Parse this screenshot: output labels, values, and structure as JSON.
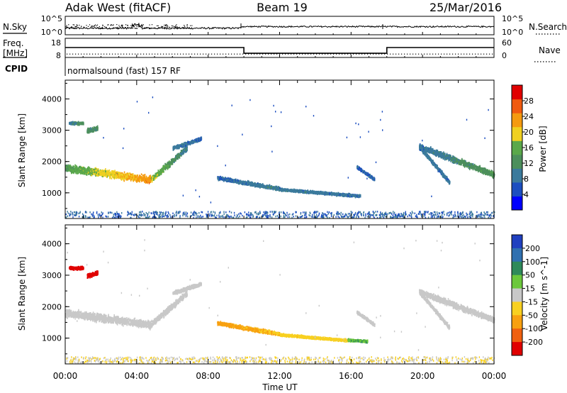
{
  "header": {
    "station": "Adak West (fitACF)",
    "beam": "Beam 19",
    "date": "25/Mar/2016"
  },
  "chart_data": [
    {
      "type": "line",
      "id": "nsky",
      "left_label": "N.Sky",
      "right_label": "N.Search",
      "left_ticks": [
        "10^5",
        "10^0"
      ],
      "right_ticks": [
        "10^5",
        "10^0"
      ]
    },
    {
      "type": "line",
      "id": "freq",
      "left_label_top": "Freq.",
      "left_label_bottom": "[MHz]",
      "right_label": "Nave",
      "left_ticks": [
        18,
        8
      ],
      "right_ticks": [
        60,
        0
      ],
      "ylim_left": [
        8,
        18
      ],
      "ylim_right": [
        0,
        60
      ],
      "segments": [
        {
          "t0": 0.0,
          "t1": 10.0,
          "freq": 13.2
        },
        {
          "t0": 10.0,
          "t1": 18.0,
          "freq": 10.2
        },
        {
          "t0": 18.0,
          "t1": 24.0,
          "freq": 13.2
        }
      ],
      "nave": 12
    },
    {
      "type": "table",
      "id": "cpid",
      "label": "CPID",
      "text": "normalsound (fast) 157 RF"
    },
    {
      "type": "scatter",
      "id": "power",
      "ylabel": "Slant Range [km]",
      "yticks": [
        1000,
        2000,
        3000,
        4000
      ],
      "ylim": [
        180,
        4600
      ],
      "xlim": [
        0,
        24
      ],
      "colorbar": {
        "label": "Power [dB]",
        "ticks": [
          4,
          8,
          12,
          16,
          20,
          24,
          28
        ],
        "range": [
          0,
          32
        ],
        "colors": [
          "#0000ff",
          "#1c4ec0",
          "#3b7a9c",
          "#4c8f5c",
          "#5aa84a",
          "#f0d020",
          "#f59a10",
          "#f05a10",
          "#e00000"
        ]
      },
      "features": [
        {
          "t0": 0.0,
          "t1": 4.8,
          "r0": 1820,
          "r1": 1440,
          "width": 330,
          "v0": 14,
          "v1": 24
        },
        {
          "t0": 4.8,
          "t1": 6.8,
          "r0": 1460,
          "r1": 2450,
          "width": 260,
          "v0": 18,
          "v1": 9
        },
        {
          "t0": 0.2,
          "t1": 1.0,
          "r0": 3250,
          "r1": 3250,
          "width": 120,
          "v0": 9,
          "v1": 13
        },
        {
          "t0": 1.2,
          "t1": 1.8,
          "r0": 3000,
          "r1": 3100,
          "width": 180,
          "v0": 12,
          "v1": 12
        },
        {
          "t0": 6.0,
          "t1": 7.6,
          "r0": 2450,
          "r1": 2750,
          "width": 160,
          "v0": 9,
          "v1": 7
        },
        {
          "t0": 8.5,
          "t1": 12.0,
          "r0": 1500,
          "r1": 1150,
          "width": 160,
          "v0": 7,
          "v1": 10
        },
        {
          "t0": 12.0,
          "t1": 16.5,
          "r0": 1130,
          "r1": 920,
          "width": 110,
          "v0": 9,
          "v1": 8
        },
        {
          "t0": 16.3,
          "t1": 17.3,
          "r0": 1850,
          "r1": 1450,
          "width": 130,
          "v0": 7,
          "v1": 7
        },
        {
          "t0": 19.8,
          "t1": 21.5,
          "r0": 2500,
          "r1": 1350,
          "width": 180,
          "v0": 9,
          "v1": 8
        },
        {
          "t0": 19.8,
          "t1": 24.0,
          "r0": 2500,
          "r1": 1600,
          "width": 260,
          "v0": 8,
          "v1": 14
        }
      ]
    },
    {
      "type": "scatter",
      "id": "velocity",
      "xlabel": "Time UT",
      "ylabel": "Slant Range [km]",
      "yticks": [
        1000,
        2000,
        3000,
        4000
      ],
      "ylim": [
        180,
        4600
      ],
      "xlim": [
        0,
        24
      ],
      "xticks": [
        "00:00",
        "04:00",
        "08:00",
        "12:00",
        "16:00",
        "20:00",
        "00:00"
      ],
      "colorbar": {
        "label": "Velocity [m s^-1]",
        "ticks": [
          200,
          100,
          50,
          15,
          -15,
          -50,
          -100,
          -200
        ],
        "colors": [
          "#2040c0",
          "#3070b0",
          "#2e8a5a",
          "#6cc83c",
          "#c8c8c8",
          "#f8d020",
          "#f8a010",
          "#f06010",
          "#e00000"
        ]
      },
      "features": [
        {
          "t0": 0.0,
          "t1": 4.8,
          "r0": 1820,
          "r1": 1440,
          "width": 330,
          "v0": 0,
          "v1": 0
        },
        {
          "t0": 4.8,
          "t1": 6.8,
          "r0": 1460,
          "r1": 2450,
          "width": 260,
          "v0": 0,
          "v1": 0
        },
        {
          "t0": 0.2,
          "t1": 1.0,
          "r0": 3250,
          "r1": 3250,
          "width": 120,
          "v0": -230,
          "v1": -230
        },
        {
          "t0": 1.2,
          "t1": 1.8,
          "r0": 3000,
          "r1": 3100,
          "width": 180,
          "v0": -230,
          "v1": -230
        },
        {
          "t0": 6.0,
          "t1": 7.6,
          "r0": 2450,
          "r1": 2750,
          "width": 160,
          "v0": 0,
          "v1": 0
        },
        {
          "t0": 8.5,
          "t1": 12.0,
          "r0": 1500,
          "r1": 1150,
          "width": 160,
          "v0": -40,
          "v1": -30
        },
        {
          "t0": 12.0,
          "t1": 15.8,
          "r0": 1130,
          "r1": 950,
          "width": 110,
          "v0": -25,
          "v1": -20
        },
        {
          "t0": 15.8,
          "t1": 16.9,
          "r0": 960,
          "r1": 920,
          "width": 100,
          "v0": 30,
          "v1": 30
        },
        {
          "t0": 16.3,
          "t1": 17.3,
          "r0": 1850,
          "r1": 1450,
          "width": 130,
          "v0": 0,
          "v1": 0
        },
        {
          "t0": 19.8,
          "t1": 21.5,
          "r0": 2500,
          "r1": 1350,
          "width": 180,
          "v0": 0,
          "v1": 0
        },
        {
          "t0": 19.8,
          "t1": 24.0,
          "r0": 2500,
          "r1": 1600,
          "width": 260,
          "v0": 0,
          "v1": 0
        }
      ]
    }
  ]
}
